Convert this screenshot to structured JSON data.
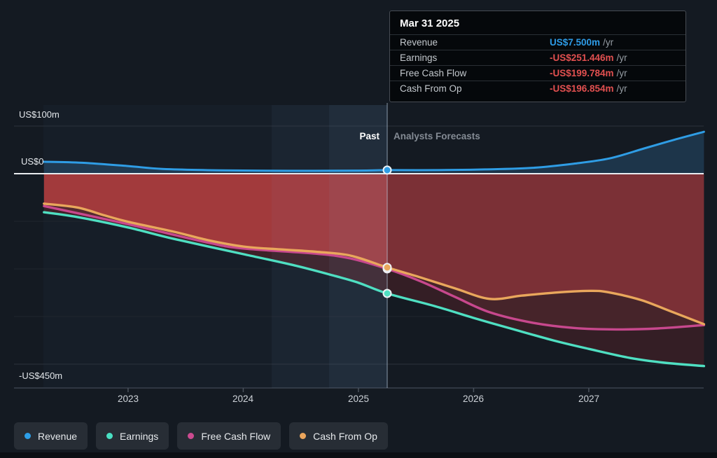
{
  "tooltip": {
    "date": "Mar 31 2025",
    "rows": [
      {
        "label": "Revenue",
        "value": "US$7.500m",
        "unit": "/yr",
        "value_color": "#2e9be6"
      },
      {
        "label": "Earnings",
        "value": "-US$251.446m",
        "unit": "/yr",
        "value_color": "#e25050"
      },
      {
        "label": "Free Cash Flow",
        "value": "-US$199.784m",
        "unit": "/yr",
        "value_color": "#e25050"
      },
      {
        "label": "Cash From Op",
        "value": "-US$196.854m",
        "unit": "/yr",
        "value_color": "#e25050"
      }
    ]
  },
  "legend": {
    "items": [
      {
        "label": "Revenue",
        "color": "#2d9fe8"
      },
      {
        "label": "Earnings",
        "color": "#49e0c3"
      },
      {
        "label": "Free Cash Flow",
        "color": "#cc4b90"
      },
      {
        "label": "Cash From Op",
        "color": "#eba55c"
      }
    ]
  },
  "chart_data": {
    "type": "line",
    "title": "",
    "x_unit": "year_decimal",
    "xlim": [
      2022.27,
      2028.0
    ],
    "ylim_m": [
      -450,
      100
    ],
    "divider_x": 2025.25,
    "past_label": "Past",
    "forecast_label": "Analysts Forecasts",
    "x_ticks": [
      "2023",
      "2024",
      "2025",
      "2026",
      "2027"
    ],
    "x_tick_years": [
      2023,
      2024,
      2025,
      2026,
      2027
    ],
    "y_tick_labels": [
      "US$100m",
      "US$0",
      "-US$450m"
    ],
    "y_ticks_m": [
      100,
      0,
      -450
    ],
    "grid": "minimal",
    "legend_position": "bottom-left",
    "colors": {
      "negative_fill_past": "#a23a3c",
      "negative_fill_forecast": "#7b3036",
      "zero_line": "#e8ebef",
      "divider": "rgba(190,208,228,0.45)"
    },
    "series": [
      {
        "name": "Revenue",
        "color": "#2f9de5",
        "units": "US$m",
        "points": [
          [
            2022.27,
            25
          ],
          [
            2022.6,
            23
          ],
          [
            2023.0,
            16
          ],
          [
            2023.3,
            10
          ],
          [
            2023.8,
            7
          ],
          [
            2024.4,
            6
          ],
          [
            2025.0,
            6.5
          ],
          [
            2025.25,
            7.5
          ],
          [
            2025.7,
            7.5
          ],
          [
            2026.1,
            9
          ],
          [
            2026.5,
            12
          ],
          [
            2026.87,
            21
          ],
          [
            2027.18,
            32
          ],
          [
            2027.48,
            53
          ],
          [
            2027.74,
            71
          ],
          [
            2028.0,
            88
          ]
        ]
      },
      {
        "name": "Earnings",
        "color": "#4fdfc2",
        "units": "US$m",
        "points": [
          [
            2022.27,
            -81
          ],
          [
            2022.56,
            -91
          ],
          [
            2023.0,
            -113
          ],
          [
            2023.4,
            -137
          ],
          [
            2024.0,
            -169
          ],
          [
            2024.45,
            -193
          ],
          [
            2024.8,
            -215
          ],
          [
            2025.0,
            -229
          ],
          [
            2025.25,
            -251.446
          ],
          [
            2025.66,
            -278
          ],
          [
            2026.0,
            -303
          ],
          [
            2026.32,
            -325
          ],
          [
            2026.69,
            -350
          ],
          [
            2027.0,
            -368
          ],
          [
            2027.36,
            -387
          ],
          [
            2027.66,
            -397
          ],
          [
            2028.0,
            -404
          ]
        ]
      },
      {
        "name": "Free Cash Flow",
        "color": "#c7488d",
        "units": "US$m",
        "points": [
          [
            2022.27,
            -68
          ],
          [
            2023.0,
            -106
          ],
          [
            2023.7,
            -145
          ],
          [
            2024.0,
            -157
          ],
          [
            2024.63,
            -168
          ],
          [
            2024.93,
            -178
          ],
          [
            2025.25,
            -199.784
          ],
          [
            2025.54,
            -226
          ],
          [
            2025.84,
            -259
          ],
          [
            2026.14,
            -291
          ],
          [
            2026.51,
            -313
          ],
          [
            2026.87,
            -324
          ],
          [
            2027.24,
            -327
          ],
          [
            2027.6,
            -325
          ],
          [
            2028.0,
            -318
          ]
        ]
      },
      {
        "name": "Cash From Op",
        "color": "#e9a75c",
        "units": "US$m",
        "points": [
          [
            2022.27,
            -63
          ],
          [
            2022.56,
            -71
          ],
          [
            2022.8,
            -88
          ],
          [
            2023.0,
            -101
          ],
          [
            2023.4,
            -122
          ],
          [
            2023.7,
            -140
          ],
          [
            2024.0,
            -153
          ],
          [
            2024.32,
            -159
          ],
          [
            2024.63,
            -164
          ],
          [
            2024.93,
            -172
          ],
          [
            2025.25,
            -196.854
          ],
          [
            2025.54,
            -218
          ],
          [
            2025.84,
            -241
          ],
          [
            2026.14,
            -263
          ],
          [
            2026.42,
            -256
          ],
          [
            2026.75,
            -249
          ],
          [
            2027.02,
            -246
          ],
          [
            2027.17,
            -249
          ],
          [
            2027.45,
            -265
          ],
          [
            2027.69,
            -287
          ],
          [
            2028.0,
            -316
          ]
        ]
      }
    ]
  }
}
